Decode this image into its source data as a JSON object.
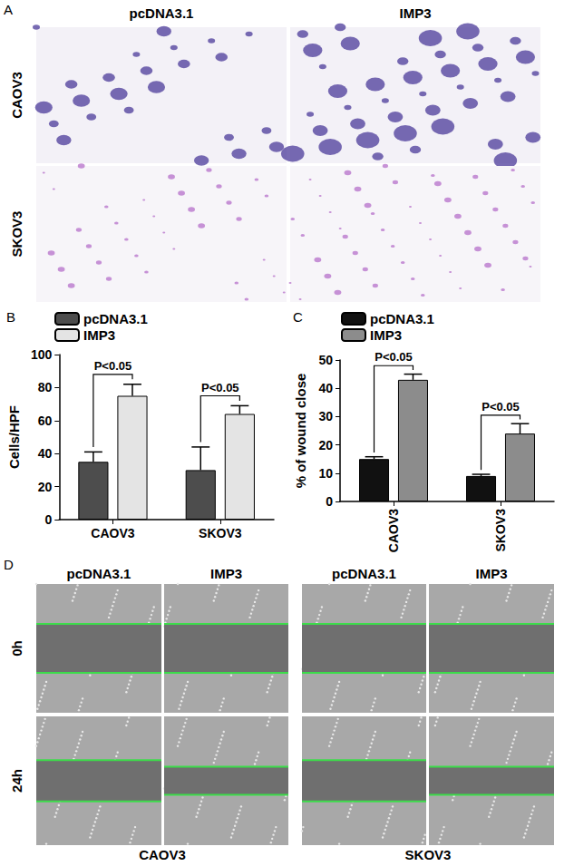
{
  "panel_A": {
    "label": "A",
    "columns": [
      "pcDNA3.1",
      "IMP3"
    ],
    "rows": [
      "CAOV3",
      "SKOV3"
    ]
  },
  "chart_data": [
    {
      "panel": "B",
      "type": "bar",
      "categories": [
        "CAOV3",
        "SKOV3"
      ],
      "y_label": "Cells/HPF",
      "ylim": [
        0,
        100
      ],
      "yticks": [
        0,
        20,
        40,
        60,
        80,
        100
      ],
      "legend": "top-left",
      "series": [
        {
          "name": "pcDNA3.1",
          "color": "#4d4d4d",
          "values": [
            35,
            30
          ],
          "errors": [
            6,
            14
          ]
        },
        {
          "name": "IMP3",
          "color": "#e4e4e4",
          "values": [
            75,
            64
          ],
          "errors": [
            7,
            5
          ]
        }
      ],
      "annotations": [
        {
          "text": "P<0.05",
          "category": "CAOV3"
        },
        {
          "text": "P<0.05",
          "category": "SKOV3"
        }
      ]
    },
    {
      "panel": "C",
      "type": "bar",
      "categories": [
        "CAOV3",
        "SKOV3"
      ],
      "y_label": "% of wound close",
      "ylim": [
        0,
        50
      ],
      "yticks": [
        0,
        10,
        20,
        30,
        40,
        50
      ],
      "legend": "top-left",
      "series": [
        {
          "name": "pcDNA3.1",
          "color": "#111111",
          "values": [
            15,
            9
          ],
          "errors": [
            0.8,
            0.6
          ]
        },
        {
          "name": "IMP3",
          "color": "#8c8c8c",
          "values": [
            43,
            24
          ],
          "errors": [
            2,
            3.5
          ]
        }
      ],
      "annotations": [
        {
          "text": "P<0.05",
          "category": "CAOV3"
        },
        {
          "text": "P<0.05",
          "category": "SKOV3"
        }
      ]
    }
  ],
  "panel_D": {
    "label": "D",
    "columns": [
      "pcDNA3.1",
      "IMP3",
      "pcDNA3.1",
      "IMP3"
    ],
    "rows": [
      "0h",
      "24h"
    ],
    "groups": [
      "CAOV3",
      "SKOV3"
    ]
  }
}
